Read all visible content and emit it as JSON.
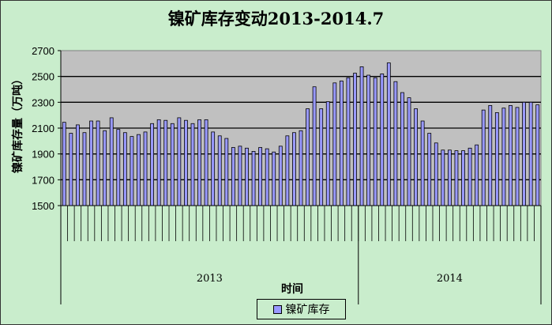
{
  "chart_data": {
    "type": "bar",
    "title": "镍矿库存变动2013-2014.7",
    "xlabel": "时间",
    "ylabel": "镍矿库存量（万吨）",
    "ylim": [
      1500,
      2700
    ],
    "yticks": [
      1500,
      1700,
      1900,
      2100,
      2300,
      2500,
      2700
    ],
    "grid": true,
    "legend_position": "bottom",
    "groups": [
      {
        "label": "2013",
        "count": 44
      },
      {
        "label": "2014",
        "count": 27
      }
    ],
    "series": [
      {
        "name": "镍矿库存",
        "color": "#9999ff",
        "values": [
          2145,
          2060,
          2125,
          2065,
          2155,
          2155,
          2080,
          2180,
          2090,
          2065,
          2035,
          2050,
          2070,
          2135,
          2165,
          2160,
          2135,
          2180,
          2160,
          2135,
          2165,
          2165,
          2070,
          2040,
          2020,
          1950,
          1960,
          1945,
          1920,
          1950,
          1940,
          1915,
          1960,
          2040,
          2065,
          2080,
          2250,
          2420,
          2250,
          2305,
          2450,
          2465,
          2490,
          2525,
          2575,
          2510,
          2490,
          2520,
          2605,
          2460,
          2375,
          2335,
          2250,
          2155,
          2060,
          1985,
          1930,
          1930,
          1925,
          1925,
          1945,
          1970,
          2240,
          2275,
          2220,
          2255,
          2275,
          2260,
          2300,
          2300,
          2280
        ]
      }
    ]
  },
  "colors": {
    "background": "#c9edcc",
    "plot_area": "#c0c0c0",
    "bar": "#9999ff"
  }
}
